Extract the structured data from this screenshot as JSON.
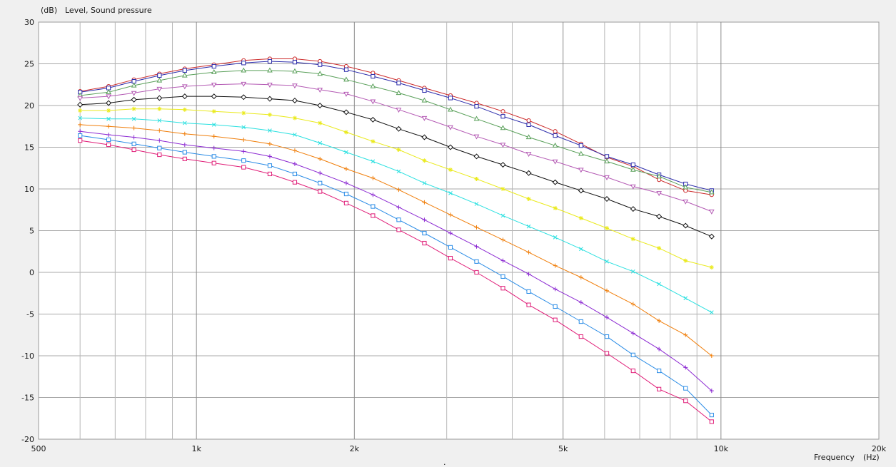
{
  "chart_data": {
    "type": "line",
    "ylabel_unit": "(dB)",
    "ylabel": "Level, Sound pressure",
    "xlabel": "Frequency",
    "xlabel_unit": "(Hz)",
    "x_scale": "log",
    "xlim": [
      500,
      20000
    ],
    "ylim": [
      -20,
      30
    ],
    "grid": true,
    "x_tick_labels": [
      {
        "value": 500,
        "label": "500"
      },
      {
        "value": 1000,
        "label": "1k"
      },
      {
        "value": 2000,
        "label": "2k"
      },
      {
        "value": 5000,
        "label": "5k"
      },
      {
        "value": 10000,
        "label": "10k"
      },
      {
        "value": 20000,
        "label": "20k"
      }
    ],
    "x_minor_grid": [
      600,
      700,
      800,
      900,
      3000,
      4000,
      6000,
      7000,
      8000,
      9000
    ],
    "y_ticks": [
      30,
      25,
      20,
      15,
      10,
      5,
      0,
      -5,
      -10,
      -15,
      -20
    ],
    "x": [
      600,
      680,
      760,
      850,
      950,
      1080,
      1230,
      1380,
      1540,
      1720,
      1930,
      2170,
      2430,
      2720,
      3050,
      3420,
      3840,
      4300,
      4830,
      5410,
      6060,
      6800,
      7620,
      8560,
      9600
    ],
    "series": [
      {
        "color": "#cc2a2a",
        "marker": "circle",
        "values": [
          21.7,
          22.3,
          23.1,
          23.8,
          24.4,
          24.9,
          25.4,
          25.6,
          25.6,
          25.3,
          24.7,
          23.9,
          23.0,
          22.1,
          21.2,
          20.3,
          19.3,
          18.2,
          16.9,
          15.4,
          13.8,
          12.7,
          11.1,
          9.8,
          9.3
        ]
      },
      {
        "color": "#2a2aaa",
        "marker": "square",
        "values": [
          21.6,
          22.1,
          22.9,
          23.6,
          24.2,
          24.7,
          25.1,
          25.3,
          25.2,
          24.9,
          24.3,
          23.5,
          22.7,
          21.8,
          20.9,
          19.9,
          18.7,
          17.7,
          16.4,
          15.2,
          13.9,
          12.9,
          11.7,
          10.6,
          9.8
        ]
      },
      {
        "color": "#5aa05a",
        "marker": "triangle-up",
        "values": [
          21.2,
          21.6,
          22.4,
          23.0,
          23.6,
          24.0,
          24.2,
          24.2,
          24.1,
          23.8,
          23.1,
          22.3,
          21.5,
          20.6,
          19.5,
          18.4,
          17.3,
          16.2,
          15.2,
          14.2,
          13.3,
          12.3,
          11.5,
          10.2,
          9.6
        ]
      },
      {
        "color": "#b45ab4",
        "marker": "triangle-down",
        "values": [
          20.9,
          21.1,
          21.5,
          22.0,
          22.3,
          22.5,
          22.6,
          22.5,
          22.4,
          21.9,
          21.4,
          20.5,
          19.5,
          18.5,
          17.4,
          16.3,
          15.3,
          14.2,
          13.3,
          12.3,
          11.4,
          10.3,
          9.5,
          8.5,
          7.3
        ]
      },
      {
        "color": "#111111",
        "marker": "diamond",
        "values": [
          20.1,
          20.3,
          20.7,
          20.9,
          21.1,
          21.1,
          21.0,
          20.8,
          20.6,
          20.0,
          19.2,
          18.3,
          17.2,
          16.2,
          15.0,
          13.9,
          12.9,
          11.9,
          10.8,
          9.8,
          8.8,
          7.6,
          6.7,
          5.6,
          4.3
        ]
      },
      {
        "color": "#eaea1e",
        "marker": "star",
        "values": [
          19.4,
          19.4,
          19.6,
          19.6,
          19.5,
          19.3,
          19.1,
          18.9,
          18.5,
          17.9,
          16.8,
          15.7,
          14.7,
          13.4,
          12.3,
          11.2,
          10.0,
          8.8,
          7.7,
          6.5,
          5.3,
          4.0,
          2.9,
          1.4,
          0.6
        ]
      },
      {
        "color": "#2ae0e0",
        "marker": "x",
        "values": [
          18.5,
          18.4,
          18.4,
          18.2,
          17.9,
          17.7,
          17.4,
          17.0,
          16.5,
          15.5,
          14.4,
          13.3,
          12.1,
          10.7,
          9.5,
          8.2,
          6.8,
          5.5,
          4.2,
          2.8,
          1.3,
          0.1,
          -1.4,
          -3.1,
          -4.8
        ]
      },
      {
        "color": "#f07e0a",
        "marker": "plus",
        "values": [
          17.7,
          17.5,
          17.3,
          17.0,
          16.6,
          16.3,
          15.9,
          15.4,
          14.6,
          13.6,
          12.4,
          11.3,
          9.9,
          8.4,
          6.9,
          5.4,
          3.9,
          2.4,
          0.8,
          -0.6,
          -2.2,
          -3.8,
          -5.8,
          -7.5,
          -10.0
        ]
      },
      {
        "color": "#8c2ad2",
        "marker": "plus",
        "values": [
          16.9,
          16.5,
          16.2,
          15.8,
          15.3,
          14.9,
          14.5,
          13.9,
          13.0,
          11.9,
          10.7,
          9.3,
          7.8,
          6.3,
          4.7,
          3.1,
          1.4,
          -0.2,
          -2.0,
          -3.6,
          -5.4,
          -7.3,
          -9.2,
          -11.4,
          -14.2
        ]
      },
      {
        "color": "#2a8ce6",
        "marker": "square",
        "values": [
          16.4,
          15.9,
          15.4,
          14.9,
          14.4,
          13.9,
          13.4,
          12.8,
          11.8,
          10.7,
          9.4,
          7.9,
          6.3,
          4.7,
          3.0,
          1.3,
          -0.5,
          -2.3,
          -4.1,
          -5.9,
          -7.7,
          -9.9,
          -11.8,
          -13.9,
          -17.1
        ]
      },
      {
        "color": "#e01e78",
        "marker": "square",
        "values": [
          15.8,
          15.3,
          14.7,
          14.1,
          13.6,
          13.1,
          12.6,
          11.8,
          10.8,
          9.7,
          8.3,
          6.8,
          5.1,
          3.5,
          1.7,
          0.0,
          -1.9,
          -3.9,
          -5.7,
          -7.7,
          -9.7,
          -11.8,
          -14.0,
          -15.4,
          -17.9
        ]
      }
    ]
  }
}
